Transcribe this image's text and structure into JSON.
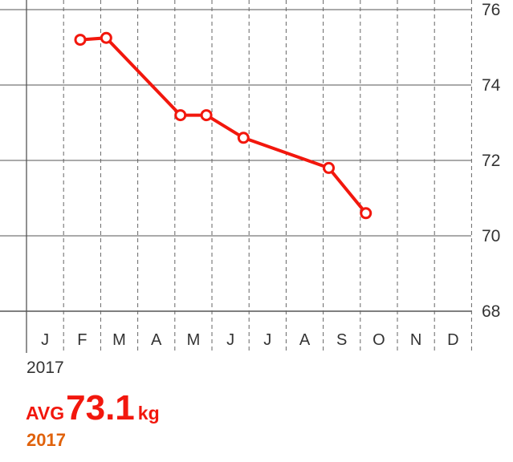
{
  "chart_data": {
    "type": "line",
    "x": [
      "J",
      "F",
      "M",
      "A",
      "M",
      "J",
      "J",
      "A",
      "S",
      "O",
      "N",
      "D"
    ],
    "points": [
      {
        "month_index": 1.45,
        "value": 75.2
      },
      {
        "month_index": 2.15,
        "value": 75.25
      },
      {
        "month_index": 4.15,
        "value": 73.2
      },
      {
        "month_index": 4.85,
        "value": 73.2
      },
      {
        "month_index": 5.85,
        "value": 72.6
      },
      {
        "month_index": 8.15,
        "value": 71.8
      },
      {
        "month_index": 9.15,
        "value": 70.6
      }
    ],
    "y_ticks": [
      76,
      74,
      72,
      70,
      68
    ],
    "ylim": [
      68,
      76
    ],
    "grid": true,
    "line_color": "#f2170d"
  },
  "footer": {
    "year": "2017",
    "avg_prefix": "AVG",
    "avg_value": "73.1",
    "avg_unit": "kg",
    "avg_period": "2017"
  },
  "colors": {
    "accent": "#f2170d",
    "period": "#e0620c"
  }
}
